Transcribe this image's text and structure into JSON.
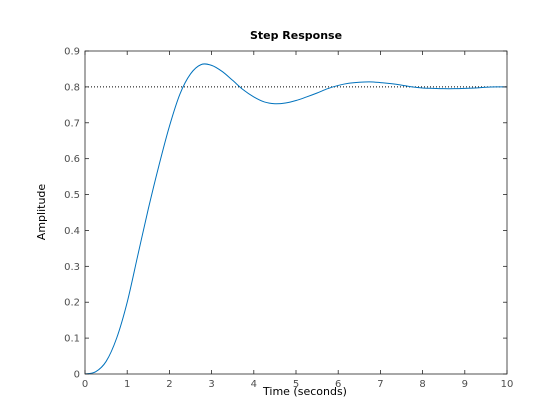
{
  "chart_data": {
    "type": "line",
    "title": "Step Response",
    "xlabel": "Time (seconds)",
    "ylabel": "Amplitude",
    "xlim": [
      0,
      10
    ],
    "ylim": [
      0,
      0.9
    ],
    "xticks": [
      "0",
      "1",
      "2",
      "3",
      "4",
      "5",
      "6",
      "7",
      "8",
      "9",
      "10"
    ],
    "yticks": [
      "0",
      "0.1",
      "0.2",
      "0.3",
      "0.4",
      "0.5",
      "0.6",
      "0.7",
      "0.8",
      "0.9"
    ],
    "grid": false,
    "reference_line": {
      "y": 0.8,
      "style": "dotted",
      "color": "#000000"
    },
    "series": [
      {
        "color": "#0072bd",
        "x": [
          0,
          0.25,
          0.5,
          0.75,
          1.0,
          1.25,
          1.5,
          1.75,
          2.0,
          2.25,
          2.5,
          2.75,
          3.0,
          3.25,
          3.5,
          3.75,
          4.0,
          4.25,
          4.5,
          4.75,
          5.0,
          5.25,
          5.5,
          5.75,
          6.0,
          6.25,
          6.5,
          6.75,
          7.0,
          7.25,
          7.5,
          7.75,
          8.0,
          8.25,
          8.5,
          8.75,
          9.0,
          9.25,
          9.5,
          9.75,
          10.0
        ],
        "y": [
          0,
          0.006,
          0.035,
          0.1,
          0.2,
          0.33,
          0.46,
          0.58,
          0.69,
          0.78,
          0.836,
          0.862,
          0.86,
          0.843,
          0.818,
          0.792,
          0.772,
          0.758,
          0.753,
          0.755,
          0.762,
          0.772,
          0.783,
          0.795,
          0.804,
          0.81,
          0.813,
          0.814,
          0.812,
          0.809,
          0.805,
          0.8,
          0.797,
          0.796,
          0.795,
          0.795,
          0.796,
          0.797,
          0.799,
          0.8,
          0.8
        ]
      }
    ]
  }
}
